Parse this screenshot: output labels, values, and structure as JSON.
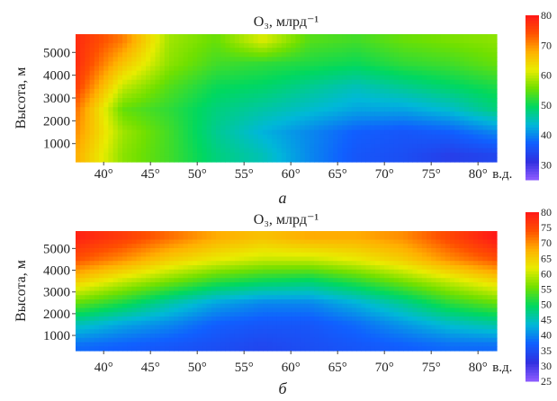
{
  "chart_data": [
    {
      "type": "heatmap",
      "panel_label": "а",
      "title": "O₃, млрд⁻¹",
      "ylabel": "Высота, м",
      "x_unit": "в.д.",
      "x_ticks": [
        "40°",
        "45°",
        "50°",
        "55°",
        "60°",
        "65°",
        "70°",
        "75°",
        "80°"
      ],
      "x_values": [
        40,
        45,
        50,
        55,
        60,
        65,
        70,
        75,
        80
      ],
      "xlim": [
        37,
        82
      ],
      "y_ticks": [
        1000,
        2000,
        3000,
        4000,
        5000
      ],
      "ylim": [
        200,
        5800
      ],
      "colorbar": {
        "min": 25,
        "max": 80,
        "ticks": [
          30,
          40,
          50,
          60,
          70,
          80
        ],
        "colors": [
          "#8f5cff",
          "#3030e0",
          "#1060ff",
          "#00b8d8",
          "#00d860",
          "#70e000",
          "#e8ec00",
          "#ffb000",
          "#ff5000",
          "#ff1818"
        ]
      },
      "z_grid_y": [
        500,
        1500,
        2500,
        3500,
        4500,
        5500
      ],
      "z_grid": [
        [
          68,
          57,
          53,
          48,
          45,
          40,
          36,
          35,
          33,
          34
        ],
        [
          70,
          58,
          53,
          47,
          43,
          40,
          37,
          36,
          37,
          40
        ],
        [
          72,
          55,
          52,
          48,
          46,
          44,
          42,
          42,
          44,
          48
        ],
        [
          76,
          60,
          54,
          50,
          49,
          47,
          45,
          47,
          49,
          51
        ],
        [
          78,
          66,
          57,
          53,
          52,
          51,
          50,
          52,
          53,
          55
        ],
        [
          78,
          71,
          58,
          55,
          61,
          54,
          53,
          55,
          56,
          57
        ]
      ]
    },
    {
      "type": "heatmap",
      "panel_label": "б",
      "title": "O₃, млрд⁻¹",
      "ylabel": "Высота, м",
      "x_unit": "в.д.",
      "x_ticks": [
        "40°",
        "45°",
        "50°",
        "55°",
        "60°",
        "65°",
        "70°",
        "75°",
        "80°"
      ],
      "x_values": [
        40,
        45,
        50,
        55,
        60,
        65,
        70,
        75,
        80
      ],
      "xlim": [
        37,
        82
      ],
      "y_ticks": [
        1000,
        2000,
        3000,
        4000,
        5000
      ],
      "ylim": [
        300,
        5800
      ],
      "colorbar": {
        "min": 25,
        "max": 80,
        "ticks": [
          25,
          30,
          35,
          40,
          45,
          50,
          55,
          60,
          65,
          70,
          75,
          80
        ],
        "colors": [
          "#8f5cff",
          "#3030e0",
          "#1060ff",
          "#00b8d8",
          "#00d860",
          "#70e000",
          "#e8ec00",
          "#ffb000",
          "#ff5000",
          "#ff1818"
        ]
      },
      "z_grid_y": [
        500,
        1500,
        2500,
        3500,
        4500,
        5500
      ],
      "z_grid": [
        [
          38,
          37,
          36,
          35,
          34,
          35,
          36,
          37,
          38,
          38
        ],
        [
          45,
          42,
          40,
          37,
          36,
          36,
          38,
          41,
          44,
          46
        ],
        [
          55,
          51,
          46,
          42,
          40,
          40,
          43,
          47,
          52,
          55
        ],
        [
          65,
          60,
          56,
          52,
          50,
          49,
          52,
          56,
          60,
          64
        ],
        [
          74,
          70,
          65,
          62,
          60,
          60,
          62,
          65,
          70,
          74
        ],
        [
          79,
          76,
          72,
          68,
          66,
          68,
          68,
          70,
          75,
          80
        ]
      ]
    }
  ]
}
